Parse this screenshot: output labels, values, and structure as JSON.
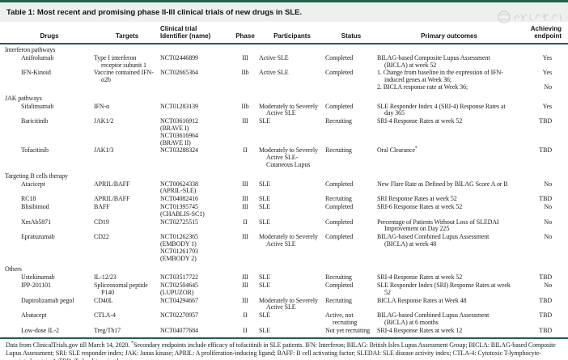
{
  "table": {
    "title": "Table 1: Most recent and promising phase II-III clinical trials of new drugs in SLE.",
    "columns": {
      "drugs": "Drugs",
      "targets": "Targets",
      "trial": "Clinical trial\nIdentifier (name)",
      "phase": "Phase",
      "participants": "Participants",
      "status": "Status",
      "outcomes": "Primary outcomes",
      "endpoint": "Achieving\nendpoint"
    },
    "sections": [
      {
        "name": "Interferon pathways",
        "rows": [
          {
            "drug": "Anifrolumab",
            "target": "Type I interferon receptor subunit 1",
            "trial": [
              "NCT02446899"
            ],
            "phase": "III",
            "participants": "Active SLE",
            "status": "Completed",
            "outcomes": [
              {
                "text": "BILAG-based Composite Lupus Assessment (BICLA) at week 52",
                "endpoint": "Yes"
              }
            ]
          },
          {
            "drug": "IFN-Kinoid",
            "target": "Vaccine contained IFN-α2b",
            "trial": [
              "NCT02665364"
            ],
            "phase": "IIb",
            "participants": "Active SLE",
            "status": "Completed",
            "outcomes": [
              {
                "text": "1. Change from baseline in the expression of IFN-induced genes at Week 36;",
                "endpoint": "Yes"
              },
              {
                "text": "2. BICLA response rate at Week 36;",
                "endpoint": "No"
              }
            ]
          }
        ]
      },
      {
        "name": "JAK pathways",
        "rows": [
          {
            "drug": "Sifalimumab",
            "target": "IFN-α",
            "trial": [
              "NCT01283139"
            ],
            "phase": "IIb",
            "participants": "Moderately to Severely Active SLE",
            "status": "Completed",
            "outcomes": [
              {
                "text": "SLE Responder Index 4 (SRI-4) Response Rates at day 365",
                "endpoint": "Yes"
              }
            ]
          },
          {
            "drug": "Baricitinib",
            "target": "JAK1/2",
            "trial": [
              "NCT03616912",
              "(BRAVE I)",
              "NCT03616964",
              "(BRAVE II)"
            ],
            "phase": "III",
            "participants": "SLE",
            "status": "Recruiting",
            "outcomes": [
              {
                "text": "SRI-4 Response Rates at week 52",
                "endpoint": "TBD"
              }
            ]
          },
          {
            "drug": "Tofacitinib",
            "target": "JAK1/3",
            "trial": [
              "NCT03288324"
            ],
            "phase": "II",
            "participants": "Moderately to Severely Active SLE- Cutaneous Lupus",
            "status": "Recruiting",
            "outcomes": [
              {
                "text": "Oral Clearance",
                "sup": "*",
                "endpoint": "TBD"
              }
            ]
          }
        ]
      },
      {
        "name": "Targeting B cells therapy",
        "rows": [
          {
            "drug": "Atacicept",
            "target": "APRIL/BAFF",
            "trial": [
              "NCT00624338",
              "(APRIL-SLE)"
            ],
            "phase": "III",
            "participants": "SLE",
            "status": "Completed",
            "outcomes": [
              {
                "text": "New Flare Rate as Defined by BILAG Score A or B",
                "endpoint": "No"
              }
            ]
          },
          {
            "drug": "RC18",
            "target": "APRIL/BAFF",
            "trial": [
              "NCT04082416"
            ],
            "phase": "III",
            "participants": "SLE",
            "status": "Recruiting",
            "outcomes": [
              {
                "text": "SRI Response Rates at week 52",
                "endpoint": "TBD"
              }
            ]
          },
          {
            "drug": "Blisibimod",
            "target": "BAFF",
            "trial": [
              "NCT01395745",
              "(CHABLIS-SC1)"
            ],
            "phase": "III",
            "participants": "SLE",
            "status": "Completed",
            "outcomes": [
              {
                "text": "SRI-6 Response Rates at week 52",
                "endpoint": "No"
              }
            ]
          },
          {
            "drug": "XmAb5871",
            "target": "CD19",
            "trial": [
              "NCT02725515"
            ],
            "phase": "II",
            "participants": "SLE",
            "status": "Completed",
            "outcomes": [
              {
                "text": "Percentage of Patients Without Loss of SLEDAI Improvement on Day 225",
                "endpoint": "No"
              }
            ]
          },
          {
            "drug": "Epratuzumab",
            "target": "CD22",
            "trial": [
              "NCT01262365",
              "(EMBODY 1)",
              "NCT01261793",
              "(EMBODY 2)"
            ],
            "phase": "III",
            "participants": "Moderately to Severely Active SLE",
            "status": "Completed",
            "outcomes": [
              {
                "text": "BILAG-based Combined Lupus Assessment (BICLA) at week 48",
                "endpoint": "No"
              }
            ]
          }
        ]
      },
      {
        "name": "Others",
        "rows": [
          {
            "drug": "Ustekinumab",
            "target": "IL-12/23",
            "trial": [
              "NCT03517722"
            ],
            "phase": "III",
            "participants": "SLE",
            "status": "Recruiting",
            "outcomes": [
              {
                "text": "SRI-4 Response Rates at week 52",
                "endpoint": "TBD"
              }
            ]
          },
          {
            "drug": "IPP-201101",
            "target": "Spliceosomal peptide P140",
            "trial": [
              "NCT02504645",
              "(LUPUZOR)"
            ],
            "phase": "III",
            "participants": "SLE",
            "status": "Completed",
            "outcomes": [
              {
                "text": "SLE Responder Index (SRI) Response Rates at week 52",
                "endpoint": "No"
              }
            ]
          },
          {
            "drug": "Dapirolizamab pegol",
            "target": "CD40L",
            "trial": [
              "NCT04294667"
            ],
            "phase": "III",
            "participants": "Moderately to Severely Active SLE",
            "status": "Recruiting",
            "outcomes": [
              {
                "text": "BICLA Response Rates at Week 48",
                "endpoint": "TBD"
              }
            ]
          },
          {
            "drug": "Abatacept",
            "target": "CTLA-4",
            "trial": [
              "NCT02270957"
            ],
            "phase": "II",
            "participants": "SLE",
            "status": "Active, not recruiting",
            "outcomes": [
              {
                "text": "BILAG-based Combined Lupus Assessment (BICLA) at 6 months",
                "endpoint": "TBD"
              }
            ]
          },
          {
            "drug": "Low-dose IL-2",
            "target": "Treg/Th17",
            "trial": [
              "NCT04077684"
            ],
            "phase": "II",
            "participants": "SLE",
            "status": "Not yet recruiting",
            "outcomes": [
              {
                "text": "SRI-4 Response Rates at week 12",
                "endpoint": "TBD"
              }
            ]
          }
        ]
      }
    ],
    "footnote": {
      "pre": "Data from ClinicalTrials.gov till March 14, 2020. ",
      "sup": "*",
      "post": "Secondary endpoints include efficacy of tofacitinib in SLE patients. IFN: Interferon; BILAG: British Isles Lupus Assessment Group; BICLA: BILAG-based Composite Lupus Assessment; SRI: SLE responder index; JAK: Janus kinase; APRIL: A proliferation-inducing ligand; BAFF: B cell activating factor; SLEDAI: SLE disease activity index; CTLA-4: Cytotoxic T-lymphocyte-associated protein 4; TBD: To be determined."
    },
    "accent_color": "#20614d",
    "title_bar_color": "#edf0ed",
    "watermark": {
      "description": "faint circular stamp with illegible handwritten script"
    }
  }
}
